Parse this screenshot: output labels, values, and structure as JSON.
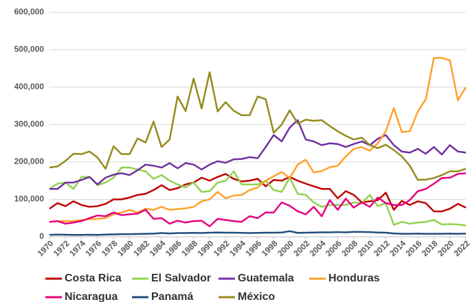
{
  "chart_data": {
    "type": "line",
    "x": [
      1970,
      1971,
      1972,
      1973,
      1974,
      1975,
      1976,
      1977,
      1978,
      1979,
      1980,
      1981,
      1982,
      1983,
      1984,
      1985,
      1986,
      1987,
      1988,
      1989,
      1990,
      1991,
      1992,
      1993,
      1994,
      1995,
      1996,
      1997,
      1998,
      1999,
      2000,
      2001,
      2002,
      2003,
      2004,
      2005,
      2006,
      2007,
      2008,
      2009,
      2010,
      2011,
      2012,
      2013,
      2014,
      2015,
      2016,
      2017,
      2018,
      2019,
      2020,
      2021,
      2022
    ],
    "xlim": [
      1970,
      2022
    ],
    "xticks": [
      1970,
      1972,
      1974,
      1976,
      1978,
      1980,
      1982,
      1984,
      1986,
      1988,
      1990,
      1992,
      1994,
      1996,
      1998,
      2000,
      2002,
      2004,
      2006,
      2008,
      2010,
      2012,
      2014,
      2016,
      2018,
      2020,
      2022
    ],
    "ylim": [
      0,
      600000
    ],
    "yticks": [
      0,
      {
        "value": 100000,
        "label": "100,000"
      },
      {
        "value": 200000,
        "label": "200,000"
      },
      {
        "value": 300000,
        "label": "300,000"
      },
      {
        "value": 400000,
        "label": "400,000"
      },
      {
        "value": 500000,
        "label": "500,000"
      },
      {
        "value": 600000,
        "label": "600,000"
      }
    ],
    "grid": true,
    "series": [
      {
        "name": "Costa Rica",
        "color": "#c00000",
        "values": [
          75000,
          90000,
          82000,
          95000,
          85000,
          80000,
          82000,
          88000,
          100000,
          100000,
          105000,
          112000,
          115000,
          125000,
          138000,
          125000,
          130000,
          140000,
          145000,
          158000,
          150000,
          160000,
          168000,
          155000,
          148000,
          150000,
          155000,
          135000,
          152000,
          150000,
          160000,
          150000,
          142000,
          135000,
          128000,
          128000,
          103000,
          122000,
          112000,
          92000,
          95000,
          98000,
          118000,
          72000,
          96000,
          85000,
          95000,
          90000,
          68000,
          68000,
          75000,
          88000,
          78000
        ]
      },
      {
        "name": "El Salvador",
        "color": "#92d050",
        "values": [
          128000,
          142000,
          145000,
          128000,
          160000,
          160000,
          138000,
          145000,
          158000,
          185000,
          185000,
          180000,
          175000,
          155000,
          165000,
          150000,
          140000,
          132000,
          145000,
          120000,
          122000,
          145000,
          150000,
          175000,
          140000,
          140000,
          140000,
          150000,
          125000,
          120000,
          158000,
          115000,
          112000,
          92000,
          80000,
          85000,
          85000,
          85000,
          92000,
          90000,
          112000,
          82000,
          90000,
          32000,
          40000,
          35000,
          38000,
          40000,
          45000,
          33000,
          34000,
          33000,
          30000
        ]
      },
      {
        "name": "Guatemala",
        "color": "#7030a0",
        "values": [
          128000,
          128000,
          145000,
          145000,
          152000,
          160000,
          140000,
          158000,
          166000,
          170000,
          165000,
          178000,
          193000,
          190000,
          185000,
          197000,
          183000,
          197000,
          193000,
          180000,
          193000,
          202000,
          198000,
          207000,
          208000,
          213000,
          210000,
          240000,
          272000,
          255000,
          292000,
          312000,
          260000,
          255000,
          245000,
          250000,
          248000,
          240000,
          248000,
          255000,
          245000,
          262000,
          272000,
          245000,
          228000,
          225000,
          235000,
          222000,
          240000,
          220000,
          245000,
          228000,
          225000
        ]
      },
      {
        "name": "Honduras",
        "color": "#ffa02a",
        "values": [
          40000,
          42000,
          42000,
          42000,
          45000,
          47000,
          48000,
          50000,
          60000,
          65000,
          72000,
          65000,
          75000,
          72000,
          80000,
          72000,
          74000,
          76000,
          80000,
          95000,
          100000,
          120000,
          103000,
          110000,
          112000,
          125000,
          132000,
          150000,
          162000,
          173000,
          157000,
          193000,
          206000,
          172000,
          176000,
          186000,
          190000,
          215000,
          235000,
          240000,
          230000,
          250000,
          282000,
          344000,
          280000,
          282000,
          335000,
          368000,
          478000,
          478000,
          472000,
          365000,
          400000
        ]
      },
      {
        "name": "Nicaragua",
        "color": "#e6007e",
        "values": [
          40000,
          42000,
          35000,
          38000,
          42000,
          50000,
          57000,
          55000,
          65000,
          58000,
          60000,
          62000,
          72000,
          48000,
          50000,
          35000,
          43000,
          38000,
          42000,
          43000,
          28000,
          48000,
          45000,
          42000,
          40000,
          55000,
          50000,
          65000,
          65000,
          92000,
          83000,
          68000,
          60000,
          80000,
          55000,
          98000,
          72000,
          102000,
          78000,
          92000,
          80000,
          105000,
          90000,
          85000,
          85000,
          98000,
          122000,
          128000,
          142000,
          157000,
          158000,
          168000,
          170000
        ]
      },
      {
        "name": "Panamá",
        "color": "#1f4e79",
        "values": [
          5000,
          6000,
          5500,
          5000,
          5000,
          5500,
          5000,
          6000,
          6500,
          7000,
          7000,
          7500,
          8000,
          8500,
          10000,
          9000,
          10000,
          10000,
          10500,
          10000,
          11000,
          11500,
          11000,
          11000,
          10500,
          10000,
          10500,
          11000,
          11000,
          11500,
          15000,
          10500,
          11000,
          11500,
          12000,
          12000,
          12500,
          12000,
          13000,
          13000,
          12500,
          11500,
          11000,
          9000,
          8000,
          8000,
          8500,
          8000,
          8000,
          8000,
          8500,
          8000,
          8500
        ]
      },
      {
        "name": "México",
        "color": "#948a1c",
        "values": [
          185000,
          188000,
          203000,
          222000,
          221000,
          228000,
          212000,
          182000,
          242000,
          221000,
          221000,
          263000,
          252000,
          308000,
          240000,
          260000,
          375000,
          336000,
          423000,
          343000,
          440000,
          335000,
          360000,
          337000,
          325000,
          325000,
          375000,
          368000,
          278000,
          300000,
          338000,
          303000,
          313000,
          310000,
          312000,
          296000,
          282000,
          270000,
          260000,
          265000,
          245000,
          237000,
          246000,
          232000,
          215000,
          190000,
          152000,
          153000,
          157000,
          165000,
          175000,
          175000,
          182000
        ]
      }
    ]
  }
}
